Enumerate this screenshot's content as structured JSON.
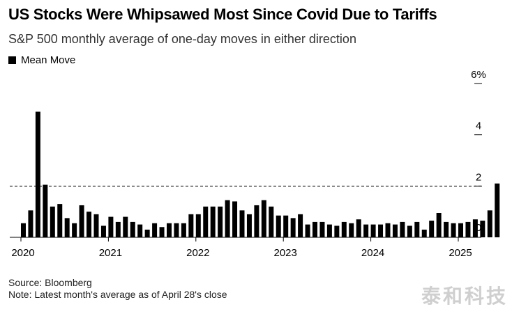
{
  "chart_data": {
    "type": "bar",
    "title": "US Stocks Were Whipsawed Most Since Covid Due to Tariffs",
    "subtitle": "S&P 500 monthly average of one-day moves in either direction",
    "legend": [
      {
        "label": "Mean Move",
        "color": "#000000"
      }
    ],
    "xlabel": "",
    "ylabel": "",
    "ylim": [
      0,
      6
    ],
    "yticks": [
      {
        "value": 0,
        "label": "0"
      },
      {
        "value": 2,
        "label": "2"
      },
      {
        "value": 4,
        "label": "4"
      },
      {
        "value": 6,
        "label": "6%"
      }
    ],
    "reference_line": {
      "value": 2.0,
      "style": "dashed"
    },
    "xticks": [
      {
        "month_index": 0,
        "label": "2020"
      },
      {
        "month_index": 12,
        "label": "2021"
      },
      {
        "month_index": 24,
        "label": "2022"
      },
      {
        "month_index": 36,
        "label": "2023"
      },
      {
        "month_index": 48,
        "label": "2024"
      },
      {
        "month_index": 60,
        "label": "2025"
      }
    ],
    "start": "2020-01",
    "series": [
      {
        "name": "Mean Move",
        "color": "#000000",
        "values": [
          0.55,
          1.05,
          4.9,
          2.05,
          1.2,
          1.3,
          0.75,
          0.55,
          1.25,
          1.0,
          0.9,
          0.45,
          0.8,
          0.6,
          0.8,
          0.6,
          0.5,
          0.3,
          0.55,
          0.4,
          0.55,
          0.55,
          0.55,
          0.9,
          0.9,
          1.2,
          1.2,
          1.2,
          1.45,
          1.4,
          1.05,
          0.9,
          1.25,
          1.45,
          1.2,
          0.85,
          0.85,
          0.75,
          0.9,
          0.5,
          0.6,
          0.6,
          0.5,
          0.45,
          0.6,
          0.55,
          0.7,
          0.5,
          0.5,
          0.5,
          0.55,
          0.5,
          0.6,
          0.45,
          0.6,
          0.3,
          0.65,
          0.95,
          0.6,
          0.55,
          0.55,
          0.6,
          0.7,
          0.65,
          1.05,
          2.1
        ]
      }
    ]
  },
  "footer": {
    "source": "Source: Bloomberg",
    "note": "Note: Latest month's average as of April 28's close"
  },
  "watermark": "泰和科技"
}
